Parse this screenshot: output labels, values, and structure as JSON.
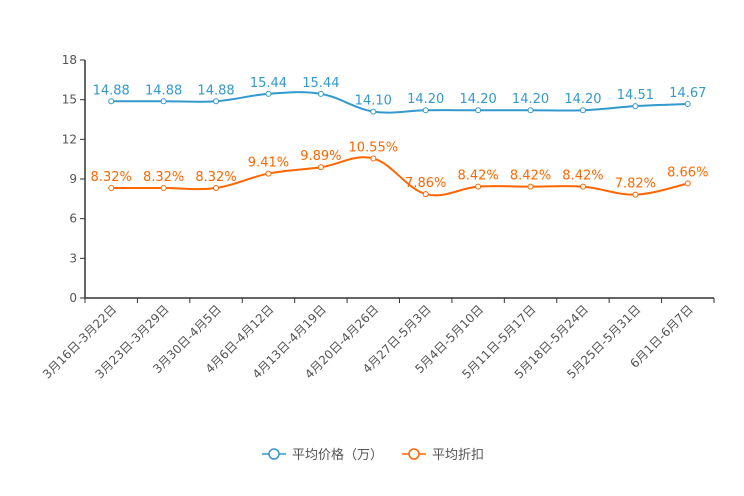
{
  "chart_data": {
    "type": "line",
    "categories": [
      "3月16日-3月22日",
      "3月23日-3月29日",
      "3月30日-4月5日",
      "4月6日-4月12日",
      "4月13日-4月19日",
      "4月20日-4月26日",
      "4月27日-5月3日",
      "5月4日-5月10日",
      "5月11日-5月17日",
      "5月18日-5月24日",
      "5月25日-5月31日",
      "6月1日-6月7日"
    ],
    "ylim": [
      0,
      18
    ],
    "yticks": [
      "0",
      "3",
      "6",
      "9",
      "12",
      "15",
      "18"
    ],
    "series": [
      {
        "name": "平均价格（万）",
        "color": "#3399cc",
        "values": [
          14.88,
          14.88,
          14.88,
          15.44,
          15.44,
          14.1,
          14.2,
          14.2,
          14.2,
          14.2,
          14.51,
          14.67
        ],
        "labels": [
          "14.88",
          "14.88",
          "14.88",
          "15.44",
          "15.44",
          "14.10",
          "14.20",
          "14.20",
          "14.20",
          "14.20",
          "14.51",
          "14.67"
        ]
      },
      {
        "name": "平均折扣",
        "color": "#ff6600",
        "values": [
          8.32,
          8.32,
          8.32,
          9.41,
          9.89,
          10.55,
          7.86,
          8.42,
          8.42,
          8.42,
          7.82,
          8.66
        ],
        "labels": [
          "8.32%",
          "8.32%",
          "8.32%",
          "9.41%",
          "9.89%",
          "10.55%",
          "7.86%",
          "8.42%",
          "8.42%",
          "8.42%",
          "7.82%",
          "8.66%"
        ]
      }
    ],
    "legend": "bottom-center"
  }
}
